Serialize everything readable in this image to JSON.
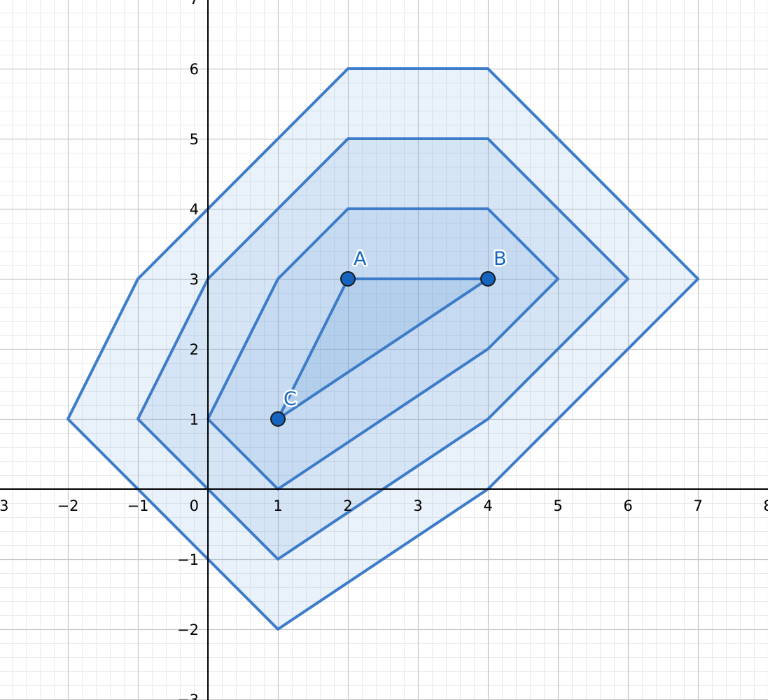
{
  "axes": {
    "x_range": [
      -3,
      8
    ],
    "y_range": [
      -3,
      7
    ],
    "x_ticks": [
      -3,
      -2,
      -1,
      1,
      2,
      3,
      4,
      5,
      6,
      7,
      8
    ],
    "x_tick_labels": [
      "−3",
      "−2",
      "−1",
      "1",
      "2",
      "3",
      "4",
      "5",
      "6",
      "7",
      "8"
    ],
    "y_ticks": [
      -3,
      -2,
      -1,
      1,
      2,
      3,
      4,
      5,
      6,
      7
    ],
    "y_tick_labels": [
      "−3",
      "−2",
      "−1",
      "1",
      "2",
      "3",
      "4",
      "5",
      "6",
      "7"
    ],
    "origin_label": "0",
    "minor_grid_step": 0.2,
    "grid": true
  },
  "colors": {
    "stroke": "#3d7cc9",
    "fill": "#6a9fde",
    "point_fill": "#1565c0",
    "label": "#1565c0",
    "grid_major": "#c8c8c8",
    "grid_minor": "#ebebeb",
    "axis": "#000000"
  },
  "regions": [
    {
      "name": "outer-expansion",
      "vertices": [
        [
          2,
          6
        ],
        [
          4,
          6
        ],
        [
          7,
          3
        ],
        [
          4,
          0
        ],
        [
          1,
          -2
        ],
        [
          -2,
          1
        ],
        [
          -1,
          3
        ],
        [
          1,
          5
        ]
      ],
      "fill_opacity": 0.15
    },
    {
      "name": "middle-expansion",
      "vertices": [
        [
          2,
          5
        ],
        [
          4,
          5
        ],
        [
          6,
          3
        ],
        [
          4,
          1
        ],
        [
          1,
          -1
        ],
        [
          -1,
          1
        ],
        [
          0,
          3
        ],
        [
          1,
          4
        ]
      ],
      "fill_opacity": 0.15
    },
    {
      "name": "inner-expansion",
      "vertices": [
        [
          2,
          4
        ],
        [
          4,
          4
        ],
        [
          5,
          3
        ],
        [
          4,
          2
        ],
        [
          1,
          0
        ],
        [
          0,
          1
        ],
        [
          1,
          3
        ]
      ],
      "fill_opacity": 0.15
    },
    {
      "name": "triangle-abc",
      "vertices": [
        [
          2,
          3
        ],
        [
          4,
          3
        ],
        [
          1,
          1
        ]
      ],
      "fill_opacity": 0.2
    }
  ],
  "points": [
    {
      "label": "A",
      "x": 2,
      "y": 3
    },
    {
      "label": "B",
      "x": 4,
      "y": 3
    },
    {
      "label": "C",
      "x": 1,
      "y": 1
    }
  ]
}
